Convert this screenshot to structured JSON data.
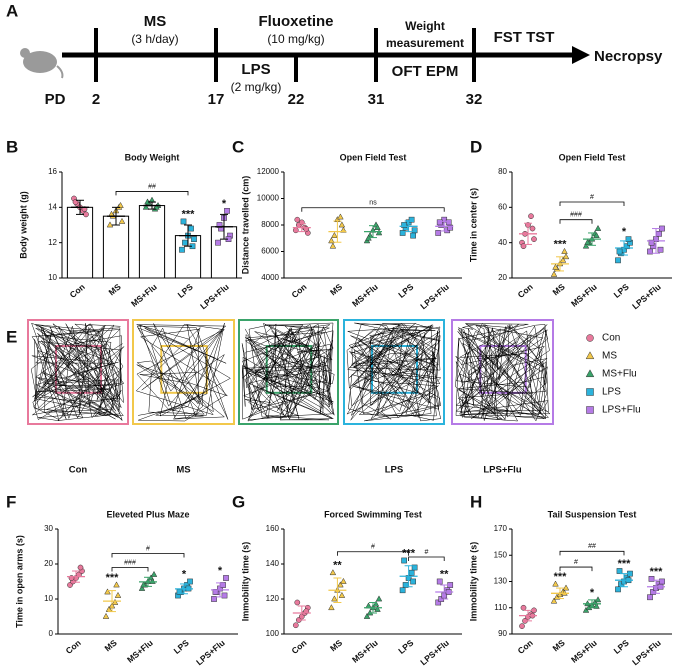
{
  "panel_labels": [
    "A",
    "B",
    "C",
    "D",
    "E",
    "F",
    "G",
    "H"
  ],
  "timeline": {
    "ticks": [
      "PD",
      "2",
      "17",
      "22",
      "31",
      "32"
    ],
    "ms": "MS",
    "ms_dose": "(3 h/day)",
    "flu": "Fluoxetine",
    "flu_dose": "(10 mg/kg)",
    "lps": "LPS",
    "lps_dose": "(2 mg/kg)",
    "weight1": "Weight",
    "weight2": "measurement",
    "oft": "OFT EPM",
    "fst": "FST TST",
    "end": "Necropsy"
  },
  "legend": {
    "labels": [
      "Con",
      "MS",
      "MS+Flu",
      "LPS",
      "LPS+Flu"
    ],
    "colors": [
      "#e8799c",
      "#f2c84b",
      "#3aa36a",
      "#2bb3dc",
      "#b57be6"
    ],
    "markers": [
      "circle",
      "triangle",
      "triangle",
      "square",
      "square"
    ]
  },
  "chart_data": [
    {
      "type": "dotplot",
      "title": "Body Weight",
      "ylabel": "Body weight (g)",
      "bars": true,
      "categories": [
        "Con",
        "MS",
        "MS+Flu",
        "LPS",
        "LPS+Flu"
      ],
      "ylim": [
        10,
        16
      ],
      "yticks": [
        10,
        12,
        14,
        16
      ],
      "points": [
        [
          14.5,
          14.2,
          14.0,
          13.8,
          13.6,
          14.3,
          13.9
        ],
        [
          13.0,
          13.5,
          13.8,
          14.0,
          13.2,
          13.6,
          14.1
        ],
        [
          14.0,
          14.2,
          14.4,
          13.9,
          14.1,
          14.3,
          14.0
        ],
        [
          11.6,
          12.0,
          12.4,
          12.8,
          12.2,
          13.2,
          11.8
        ],
        [
          12.0,
          12.8,
          13.4,
          13.8,
          12.4,
          13.0,
          12.2
        ]
      ],
      "means": [
        14.0,
        13.5,
        14.1,
        12.4,
        12.9
      ],
      "sds": [
        0.4,
        0.5,
        0.2,
        0.6,
        0.7
      ],
      "stars": [
        null,
        null,
        null,
        "***",
        "*"
      ],
      "brackets": [
        {
          "between": [
            "MS",
            "LPS"
          ],
          "y": 14.9,
          "label": "##"
        }
      ]
    },
    {
      "type": "dotplot",
      "title": "Open Field Test",
      "ylabel": "Distance travelled (cm)",
      "bars": false,
      "categories": [
        "Con",
        "MS",
        "MS+Flu",
        "LPS",
        "LPS+Flu"
      ],
      "ylim": [
        4000,
        12000
      ],
      "yticks": [
        4000,
        6000,
        8000,
        10000,
        12000
      ],
      "points": [
        [
          7600,
          8000,
          8200,
          7800,
          7400,
          8400,
          7700
        ],
        [
          6800,
          7200,
          8400,
          8600,
          7600,
          6400,
          8000
        ],
        [
          6800,
          7200,
          7600,
          8000,
          7400,
          7000,
          7800
        ],
        [
          7400,
          7800,
          8200,
          8400,
          7600,
          8000,
          7200
        ],
        [
          7400,
          8000,
          8400,
          7600,
          7800,
          8200,
          8200
        ]
      ],
      "means": [
        7800,
        7500,
        7500,
        7900,
        7900
      ],
      "sds": [
        300,
        800,
        450,
        400,
        350
      ],
      "stars": [
        null,
        null,
        null,
        null,
        null
      ],
      "brackets": [
        {
          "between": [
            "Con",
            "LPS+Flu"
          ],
          "y": 9300,
          "label": "ns"
        }
      ]
    },
    {
      "type": "dotplot",
      "title": "Open Field Test",
      "ylabel": "Time in center (s)",
      "bars": false,
      "categories": [
        "Con",
        "MS",
        "MS+Flu",
        "LPS",
        "LPS+Flu"
      ],
      "ylim": [
        20,
        80
      ],
      "yticks": [
        20,
        40,
        60,
        80
      ],
      "points": [
        [
          40,
          45,
          50,
          55,
          42,
          38,
          48
        ],
        [
          22,
          25,
          28,
          30,
          32,
          26,
          35
        ],
        [
          38,
          40,
          42,
          45,
          48,
          40,
          44
        ],
        [
          30,
          34,
          36,
          38,
          40,
          35,
          42
        ],
        [
          35,
          38,
          42,
          45,
          48,
          40,
          36
        ]
      ],
      "means": [
        45,
        28,
        42,
        37,
        41
      ],
      "sds": [
        6,
        4,
        3.5,
        4,
        7
      ],
      "stars": [
        null,
        "***",
        null,
        "*",
        null
      ],
      "brackets": [
        {
          "between": [
            "MS",
            "MS+Flu"
          ],
          "y": 53,
          "label": "###"
        },
        {
          "between": [
            "MS",
            "LPS"
          ],
          "y": 63,
          "label": "#"
        }
      ]
    },
    {
      "type": "dotplot",
      "title": "Eleveted Plus Maze",
      "ylabel": "Time in open arms (s)",
      "bars": false,
      "categories": [
        "Con",
        "MS",
        "MS+Flu",
        "LPS",
        "LPS+Flu"
      ],
      "ylim": [
        0,
        30
      ],
      "yticks": [
        0,
        10,
        20,
        30
      ],
      "points": [
        [
          14,
          15,
          16,
          17,
          18,
          16,
          19
        ],
        [
          5,
          7,
          8,
          9,
          11,
          12,
          14
        ],
        [
          13,
          14,
          15,
          16,
          17,
          14,
          15
        ],
        [
          11,
          12,
          13,
          14,
          15,
          12,
          13
        ],
        [
          10,
          12,
          13,
          14,
          16,
          12,
          11
        ]
      ],
      "means": [
        16.4,
        9.4,
        14.9,
        12.9,
        12.6
      ],
      "sds": [
        1.6,
        3,
        1.3,
        1.4,
        2
      ],
      "stars": [
        null,
        "***",
        null,
        "*",
        "*"
      ],
      "brackets": [
        {
          "between": [
            "MS",
            "MS+Flu"
          ],
          "y": 19,
          "label": "###"
        },
        {
          "between": [
            "MS",
            "LPS"
          ],
          "y": 23,
          "label": "#"
        }
      ]
    },
    {
      "type": "dotplot",
      "title": "Forced Swimming Test",
      "ylabel": "Immobility time (s)",
      "bars": false,
      "categories": [
        "Con",
        "MS",
        "MS+Flu",
        "LPS",
        "LPS+Flu"
      ],
      "ylim": [
        100,
        160
      ],
      "yticks": [
        100,
        120,
        140,
        160
      ],
      "points": [
        [
          105,
          108,
          110,
          112,
          115,
          118,
          113
        ],
        [
          115,
          120,
          125,
          128,
          130,
          135,
          122
        ],
        [
          110,
          112,
          115,
          117,
          120,
          116,
          114
        ],
        [
          125,
          128,
          132,
          135,
          138,
          142,
          130
        ],
        [
          118,
          120,
          122,
          125,
          128,
          130,
          124
        ]
      ],
      "means": [
        112,
        125,
        115,
        133,
        124
      ],
      "sds": [
        4,
        7,
        3,
        6,
        4
      ],
      "stars": [
        null,
        "**",
        null,
        "***",
        "**"
      ],
      "brackets": [
        {
          "between": [
            "MS",
            "LPS"
          ],
          "y": 147,
          "label": "#"
        },
        {
          "between": [
            "LPS",
            "LPS+Flu"
          ],
          "y": 144,
          "label": "#"
        }
      ]
    },
    {
      "type": "dotplot",
      "title": "Tail Suspension Test",
      "ylabel": "Immobility time (s)",
      "bars": false,
      "categories": [
        "Con",
        "MS",
        "MS+Flu",
        "LPS",
        "LPS+Flu"
      ],
      "ylim": [
        90,
        170
      ],
      "yticks": [
        90,
        110,
        130,
        150,
        170
      ],
      "points": [
        [
          96,
          100,
          103,
          105,
          108,
          110,
          104
        ],
        [
          115,
          118,
          120,
          122,
          125,
          128,
          121
        ],
        [
          108,
          110,
          112,
          114,
          116,
          113,
          111
        ],
        [
          124,
          128,
          130,
          133,
          136,
          138,
          131
        ],
        [
          118,
          122,
          125,
          128,
          130,
          132,
          126
        ]
      ],
      "means": [
        104,
        121,
        113,
        131,
        126
      ],
      "sds": [
        4,
        4,
        3,
        5,
        5
      ],
      "stars": [
        null,
        "***",
        "*",
        "***",
        "***"
      ],
      "brackets": [
        {
          "between": [
            "MS",
            "LPS"
          ],
          "y": 153,
          "label": "##"
        },
        {
          "between": [
            "MS",
            "MS+Flu"
          ],
          "y": 141,
          "label": "#"
        }
      ]
    }
  ]
}
